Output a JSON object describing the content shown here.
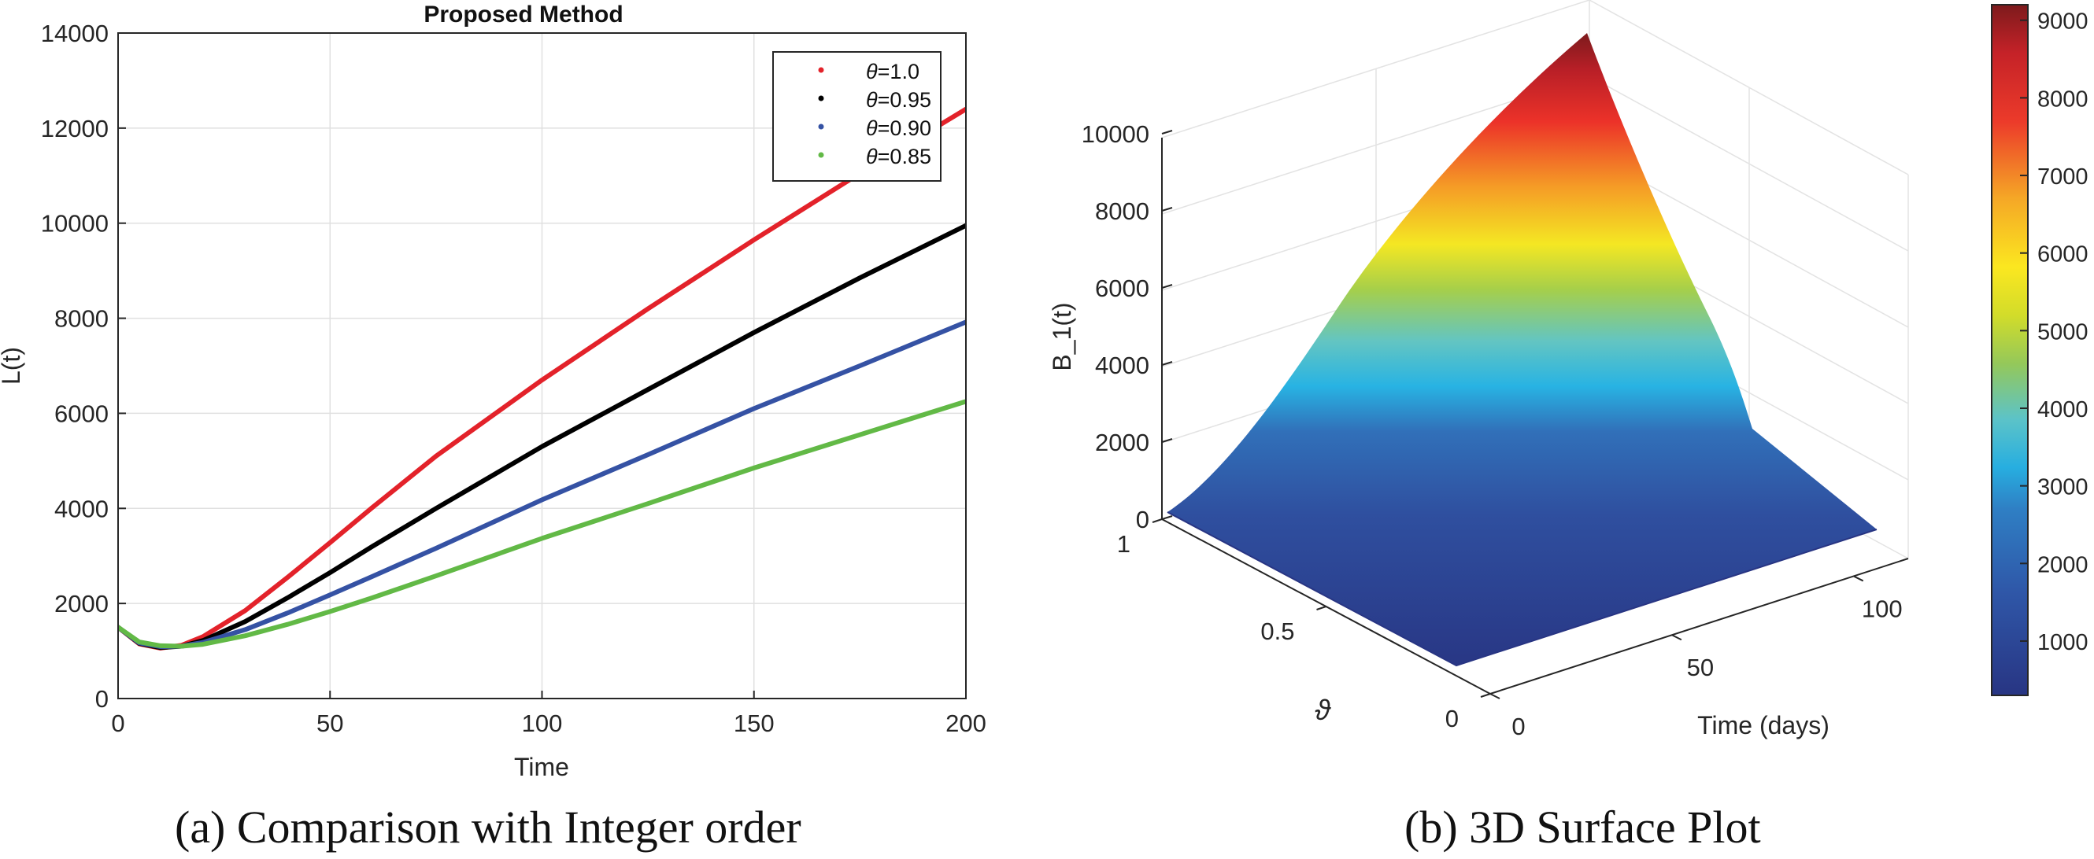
{
  "figure": {
    "caption_a": "(a) Comparison with Integer order",
    "caption_b": "(b) 3D Surface Plot"
  },
  "chart_data": [
    {
      "type": "line",
      "title": "Proposed Method",
      "xlabel": "Time",
      "ylabel": "L(t)",
      "xlim": [
        0,
        200
      ],
      "ylim": [
        0,
        14000
      ],
      "xticks": [
        0,
        50,
        100,
        150,
        200
      ],
      "yticks": [
        0,
        2000,
        4000,
        6000,
        8000,
        10000,
        12000,
        14000
      ],
      "grid": true,
      "legend_position": "top-right",
      "x": [
        0,
        5,
        10,
        15,
        20,
        30,
        40,
        50,
        60,
        75,
        100,
        125,
        150,
        175,
        200
      ],
      "series": [
        {
          "name": "θ=1.0",
          "color": "#e3222a",
          "values": [
            1500,
            1150,
            1060,
            1120,
            1300,
            1850,
            2550,
            3280,
            4020,
            5100,
            6700,
            8200,
            9650,
            11050,
            12400
          ]
        },
        {
          "name": "θ=0.95",
          "color": "#000000",
          "values": [
            1500,
            1160,
            1070,
            1100,
            1220,
            1620,
            2120,
            2650,
            3200,
            4000,
            5300,
            6500,
            7700,
            8850,
            9950
          ]
        },
        {
          "name": "θ=0.90",
          "color": "#3552a4",
          "values": [
            1500,
            1170,
            1090,
            1100,
            1180,
            1450,
            1800,
            2180,
            2570,
            3160,
            4180,
            5130,
            6100,
            7000,
            7920
          ]
        },
        {
          "name": "θ=0.85",
          "color": "#62b946",
          "values": [
            1500,
            1190,
            1110,
            1100,
            1140,
            1320,
            1560,
            1830,
            2120,
            2580,
            3370,
            4100,
            4850,
            5550,
            6250
          ]
        }
      ]
    },
    {
      "type": "surface",
      "zlabel": "B_1(t)",
      "xlabel": "Time (days)",
      "ylabel": "ϑ",
      "zticks": [
        0,
        2000,
        4000,
        6000,
        8000,
        10000
      ],
      "xticks": [
        0,
        50,
        100
      ],
      "yticks": [
        0,
        0.5,
        1
      ],
      "zlim": [
        0,
        10000
      ],
      "colorbar": {
        "ticks": [
          1000,
          2000,
          3000,
          4000,
          5000,
          6000,
          7000,
          8000,
          9000
        ],
        "range": [
          300,
          9200
        ],
        "colormap": "jet"
      },
      "corners": {
        "time_0_theta_0": 0,
        "time_0_theta_1": 150,
        "time_max_theta_0": 300,
        "time_max_theta_1": 9200
      }
    }
  ]
}
